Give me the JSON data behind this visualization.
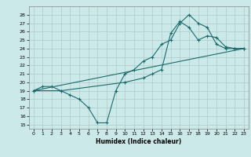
{
  "xlabel": "Humidex (Indice chaleur)",
  "bg_color": "#cce9e9",
  "grid_color": "#b0c8c8",
  "line_color": "#1a6b6b",
  "ylim": [
    14.5,
    29.0
  ],
  "xlim": [
    -0.5,
    23.5
  ],
  "yticks": [
    15,
    16,
    17,
    18,
    19,
    20,
    21,
    22,
    23,
    24,
    25,
    26,
    27,
    28
  ],
  "xticks": [
    0,
    1,
    2,
    3,
    4,
    5,
    6,
    7,
    8,
    9,
    10,
    11,
    12,
    13,
    14,
    15,
    16,
    17,
    18,
    19,
    20,
    21,
    22,
    23
  ],
  "line1_x": [
    0,
    1,
    2,
    3,
    4,
    5,
    6,
    7,
    8,
    9,
    10,
    11,
    12,
    13,
    14,
    15,
    16,
    17,
    18,
    19,
    20,
    21,
    22,
    23
  ],
  "line1_y": [
    19,
    19.5,
    19.5,
    19,
    18.5,
    18,
    17,
    15.2,
    15.2,
    19,
    21,
    21.5,
    22.5,
    23,
    24.5,
    25,
    27,
    28,
    27,
    26.5,
    24.5,
    24,
    24,
    24
  ],
  "line2_x": [
    0,
    3,
    10,
    12,
    13,
    14,
    15,
    16,
    17,
    18,
    19,
    20,
    21,
    22,
    23
  ],
  "line2_y": [
    19,
    19,
    20,
    20.5,
    21,
    21.5,
    25.8,
    27.2,
    26.5,
    25,
    25.5,
    25.3,
    24.2,
    24,
    24
  ],
  "line3_x": [
    0,
    23
  ],
  "line3_y": [
    19,
    24
  ]
}
